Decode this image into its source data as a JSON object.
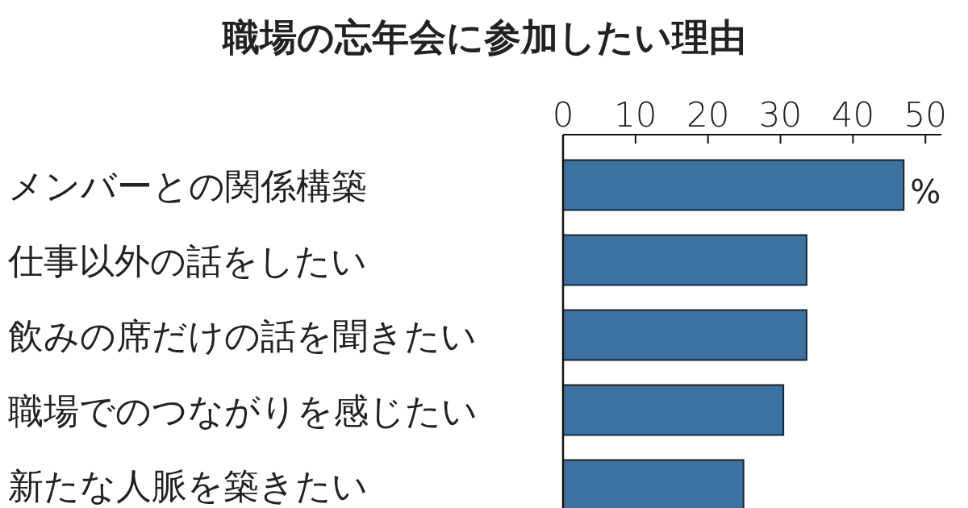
{
  "chart_data": {
    "type": "bar",
    "orientation": "horizontal",
    "title": "職場の忘年会に参加したい理由",
    "categories": [
      "メンバーとの関係構築",
      "仕事以外の話をしたい",
      "飲みの席だけの話を聞きたい",
      "職場でのつながりを感じたい",
      "新たな人脈を築きたい"
    ],
    "values": [
      47.0,
      33.6,
      33.6,
      30.4,
      24.9
    ],
    "color": "#3d72a0",
    "xlim": [
      0,
      52.2
    ],
    "xticks": [
      0,
      10,
      20,
      30,
      40,
      50
    ],
    "annotations": [
      "%"
    ]
  }
}
